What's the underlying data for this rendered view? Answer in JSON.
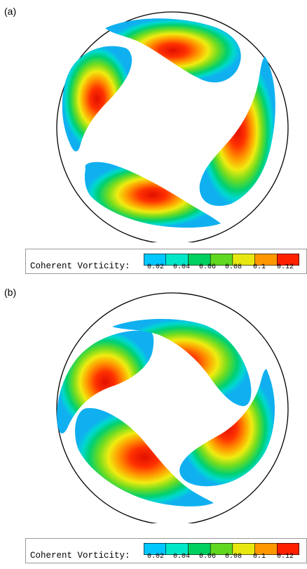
{
  "panels": [
    {
      "label": "(a)",
      "legend": {
        "title": "Coherent Vorticity:",
        "ticks": [
          "0.02",
          "0.04",
          "0.06",
          "0.08",
          "0.1",
          "0.12"
        ]
      }
    },
    {
      "label": "(b)",
      "legend": {
        "title": "Coherent Vorticity:",
        "ticks": [
          "0.02",
          "0.04",
          "0.06",
          "0.08",
          "0.1",
          "0.12"
        ]
      }
    }
  ],
  "colormap": [
    "#00c8ff",
    "#00e8c8",
    "#00d060",
    "#60d820",
    "#e8e810",
    "#ff9800",
    "#ff2000"
  ],
  "chart_data": {
    "type": "heatmap",
    "description_values": {
      "quantity": "Coherent Vorticity",
      "range": [
        0.02,
        0.12
      ],
      "vortex_count_per_panel": 4
    }
  }
}
